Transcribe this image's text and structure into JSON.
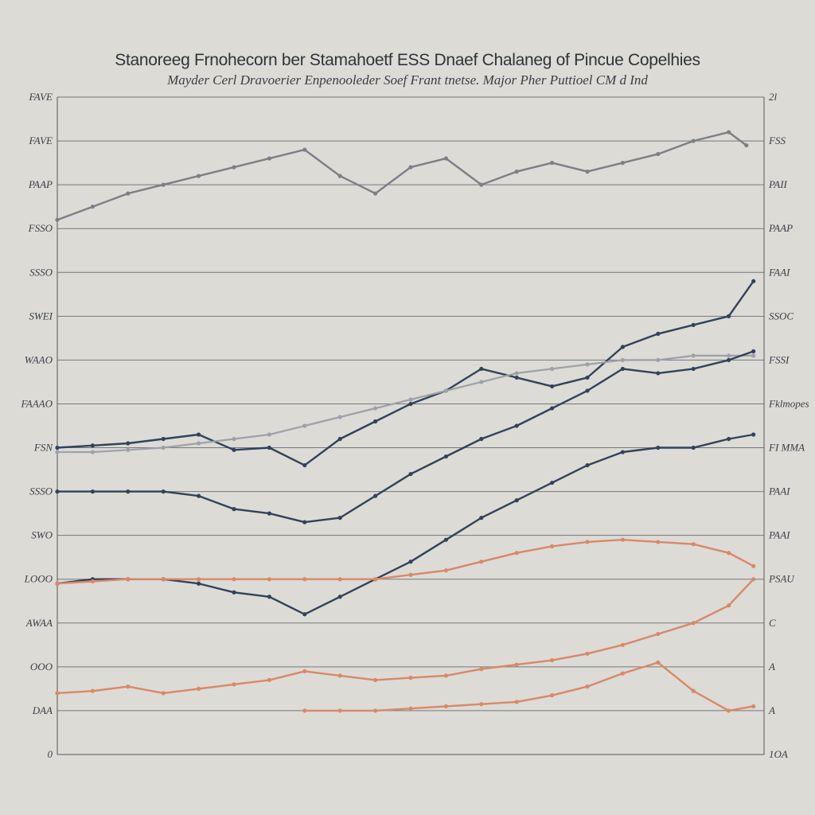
{
  "chart_data": {
    "type": "line",
    "title": "Stanoreeg Frnohecorn ber Stamahoetf ESS Dnaef Chalaneg of Pincue Copelhies",
    "subtitle": "Mayder Cerl Dravoerier Enpenooleder Soef Frant tnetse. Major Pher Puttioel CM d Ind",
    "colors": {
      "background": "#dcdbd6",
      "grid": "#55585c",
      "navy": "#33425a",
      "gray": "#7d7f84",
      "silver": "#9ea1a8",
      "salmon": "#d98868"
    },
    "y_left_ticks": [
      "FAVE",
      "FAVE",
      "PAAP",
      "FSSO",
      "SSSO",
      "SWEI",
      "WAAO",
      "FAAAO",
      "FSN",
      "SSSO",
      "SWO",
      "LOOO",
      "AWAA",
      "OOO",
      "DAA",
      "0"
    ],
    "y_right_ticks": [
      "2l",
      "FSS",
      "PAII",
      "PAAP",
      "FAAI",
      "SSOC",
      "FSSI",
      "Fklmopes",
      "FI MMA",
      "PAAI",
      "PAAI",
      "PSAU",
      "C",
      "A",
      "A",
      "1OA"
    ],
    "ylim": [
      0,
      15
    ],
    "xlim": [
      0,
      20
    ],
    "series": [
      {
        "name": "gray-upper",
        "color": "gray",
        "x": [
          0,
          1,
          2,
          3,
          4,
          5,
          6,
          7,
          8,
          9,
          10,
          11,
          12,
          13,
          14,
          15,
          16,
          17,
          18,
          19,
          19.5
        ],
        "y": [
          12.2,
          12.5,
          12.8,
          13.0,
          13.2,
          13.4,
          13.6,
          13.8,
          13.2,
          12.8,
          13.4,
          13.6,
          13.0,
          13.3,
          13.5,
          13.3,
          13.5,
          13.7,
          14.0,
          14.2,
          13.9
        ]
      },
      {
        "name": "navy-upper",
        "color": "navy",
        "x": [
          0,
          1,
          2,
          3,
          4,
          5,
          6,
          7,
          8,
          9,
          10,
          11,
          12,
          13,
          14,
          15,
          16,
          17,
          18,
          19,
          19.7
        ],
        "y": [
          7.0,
          7.05,
          7.1,
          7.2,
          7.3,
          6.95,
          7.0,
          6.6,
          7.2,
          7.6,
          8.0,
          8.3,
          8.8,
          8.6,
          8.4,
          8.6,
          9.3,
          9.6,
          9.8,
          10.0,
          10.8
        ]
      },
      {
        "name": "silver-rising",
        "color": "silver",
        "x": [
          0,
          1,
          2,
          3,
          4,
          5,
          6,
          7,
          8,
          9,
          10,
          11,
          12,
          13,
          14,
          15,
          16,
          17,
          18,
          19,
          19.7
        ],
        "y": [
          6.9,
          6.9,
          6.95,
          7.0,
          7.1,
          7.2,
          7.3,
          7.5,
          7.7,
          7.9,
          8.1,
          8.3,
          8.5,
          8.7,
          8.8,
          8.9,
          9.0,
          9.0,
          9.1,
          9.1,
          9.1
        ]
      },
      {
        "name": "navy-mid",
        "color": "navy",
        "x": [
          0,
          1,
          2,
          3,
          4,
          5,
          6,
          7,
          8,
          9,
          10,
          11,
          12,
          13,
          14,
          15,
          16,
          17,
          18,
          19,
          19.7
        ],
        "y": [
          6.0,
          6.0,
          6.0,
          6.0,
          5.9,
          5.6,
          5.5,
          5.3,
          5.4,
          5.9,
          6.4,
          6.8,
          7.2,
          7.5,
          7.9,
          8.3,
          8.8,
          8.7,
          8.8,
          9.0,
          9.2
        ]
      },
      {
        "name": "navy-lower",
        "color": "navy",
        "x": [
          0,
          1,
          2,
          3,
          4,
          5,
          6,
          7,
          8,
          9,
          10,
          11,
          12,
          13,
          14,
          15,
          16,
          17,
          18,
          19,
          19.7
        ],
        "y": [
          3.9,
          4.0,
          4.0,
          4.0,
          3.9,
          3.7,
          3.6,
          3.2,
          3.6,
          4.0,
          4.4,
          4.9,
          5.4,
          5.8,
          6.2,
          6.6,
          6.9,
          7.0,
          7.0,
          7.2,
          7.3
        ]
      },
      {
        "name": "salmon-upper",
        "color": "salmon",
        "x": [
          0,
          1,
          2,
          3,
          4,
          5,
          6,
          7,
          8,
          9,
          10,
          11,
          12,
          13,
          14,
          15,
          16,
          17,
          18,
          19,
          19.7
        ],
        "y": [
          3.9,
          3.95,
          4.0,
          4.0,
          4.0,
          4.0,
          4.0,
          4.0,
          4.0,
          4.0,
          4.1,
          4.2,
          4.4,
          4.6,
          4.75,
          4.85,
          4.9,
          4.85,
          4.8,
          4.6,
          4.3
        ]
      },
      {
        "name": "salmon-lower",
        "color": "salmon",
        "x": [
          0,
          1,
          2,
          3,
          4,
          5,
          6,
          7,
          8,
          9,
          10,
          11,
          12,
          13,
          14,
          15,
          16,
          17,
          18,
          19,
          19.7
        ],
        "y": [
          1.4,
          1.45,
          1.55,
          1.4,
          1.5,
          1.6,
          1.7,
          1.9,
          1.8,
          1.7,
          1.75,
          1.8,
          1.95,
          2.05,
          2.15,
          2.3,
          2.5,
          2.75,
          3.0,
          3.4,
          4.0
        ]
      },
      {
        "name": "salmon-flat",
        "color": "salmon",
        "x": [
          7,
          8,
          9,
          10,
          11,
          12,
          13,
          14,
          15,
          16,
          17,
          18,
          19,
          19.7
        ],
        "y": [
          1.0,
          1.0,
          1.0,
          1.05,
          1.1,
          1.15,
          1.2,
          1.35,
          1.55,
          1.85,
          2.1,
          1.45,
          1.0,
          1.1
        ]
      }
    ]
  }
}
